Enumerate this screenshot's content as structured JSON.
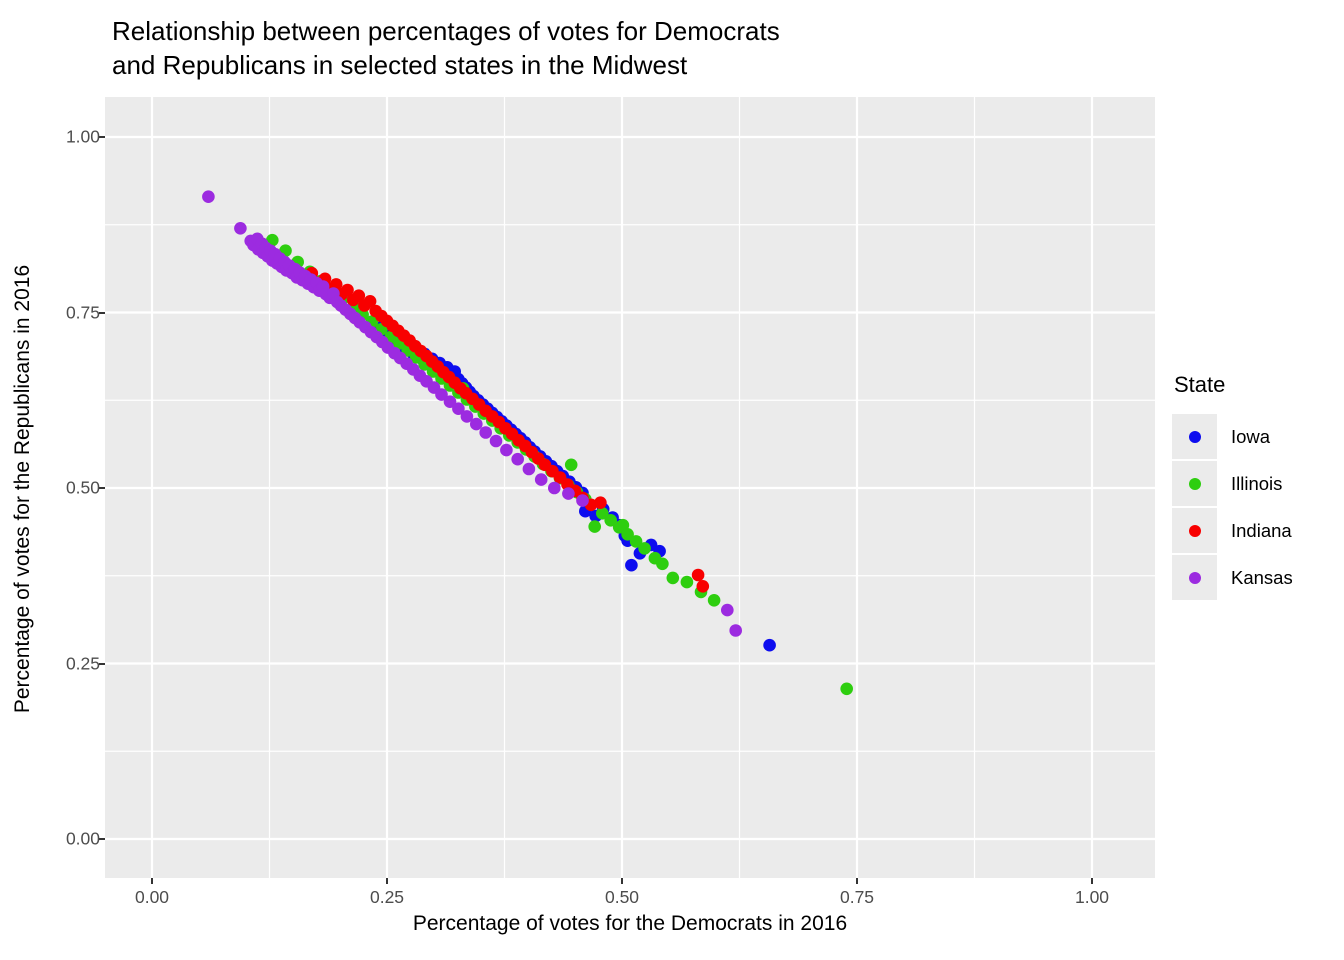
{
  "header": {
    "title": "Relationship between percentages of votes for Democrats and Republicans in selected states in the Midwest",
    "title_wrapped": "Relationship between percentages of votes for Democrats\nand Republicans in selected states in the Midwest"
  },
  "axes": {
    "x_label": "Percentage of votes for the Democrats in 2016",
    "y_label": "Percentage of votes for the Republicans in 2016",
    "x_tick_labels": [
      "0.00",
      "0.25",
      "0.50",
      "0.75",
      "1.00"
    ],
    "y_tick_labels": [
      "0.00",
      "0.25",
      "0.50",
      "0.75",
      "1.00"
    ]
  },
  "legend": {
    "title": "State",
    "entries": [
      {
        "label": "Iowa",
        "color": "#0D0DEF"
      },
      {
        "label": "Illinois",
        "color": "#2ECE0F"
      },
      {
        "label": "Indiana",
        "color": "#F80000"
      },
      {
        "label": "Kansas",
        "color": "#9C2BE0"
      }
    ]
  },
  "colors": {
    "panel_bg": "#EBEBEB",
    "grid": "#FFFFFF",
    "tick_text": "#4D4D4D",
    "tick_mark": "#333333",
    "title_text": "#000000"
  },
  "chart_data": {
    "type": "scatter",
    "title": "Relationship between percentages of votes for Democrats and Republicans in selected states in the Midwest",
    "xlabel": "Percentage of votes for the Democrats in 2016",
    "ylabel": "Percentage of votes for the Republicans in 2016",
    "xlim": [
      -0.05,
      1.067
    ],
    "ylim": [
      -0.056,
      1.057
    ],
    "x_tick_values": [
      0,
      0.25,
      0.5,
      0.75,
      1.0
    ],
    "y_tick_values": [
      0,
      0.25,
      0.5,
      0.75,
      1.0
    ],
    "grid": true,
    "legend_position": "right",
    "legend_title": "State",
    "point_radius_px": 6.3,
    "series": [
      {
        "name": "Iowa",
        "color": "#0D0DEF",
        "points": [
          [
            0.242,
            0.728
          ],
          [
            0.248,
            0.72
          ],
          [
            0.253,
            0.714
          ],
          [
            0.258,
            0.708
          ],
          [
            0.262,
            0.702
          ],
          [
            0.266,
            0.709
          ],
          [
            0.27,
            0.697
          ],
          [
            0.274,
            0.703
          ],
          [
            0.278,
            0.691
          ],
          [
            0.282,
            0.697
          ],
          [
            0.286,
            0.685
          ],
          [
            0.29,
            0.691
          ],
          [
            0.294,
            0.679
          ],
          [
            0.298,
            0.684
          ],
          [
            0.302,
            0.673
          ],
          [
            0.306,
            0.678
          ],
          [
            0.31,
            0.667
          ],
          [
            0.314,
            0.672
          ],
          [
            0.318,
            0.661
          ],
          [
            0.322,
            0.666
          ],
          [
            0.326,
            0.655
          ],
          [
            0.33,
            0.649
          ],
          [
            0.334,
            0.643
          ],
          [
            0.338,
            0.637
          ],
          [
            0.342,
            0.631
          ],
          [
            0.347,
            0.625
          ],
          [
            0.352,
            0.619
          ],
          [
            0.357,
            0.613
          ],
          [
            0.362,
            0.607
          ],
          [
            0.367,
            0.601
          ],
          [
            0.372,
            0.595
          ],
          [
            0.377,
            0.589
          ],
          [
            0.382,
            0.583
          ],
          [
            0.387,
            0.577
          ],
          [
            0.392,
            0.571
          ],
          [
            0.397,
            0.565
          ],
          [
            0.402,
            0.558
          ],
          [
            0.407,
            0.552
          ],
          [
            0.413,
            0.545
          ],
          [
            0.419,
            0.538
          ],
          [
            0.425,
            0.531
          ],
          [
            0.431,
            0.524
          ],
          [
            0.437,
            0.517
          ],
          [
            0.444,
            0.509
          ],
          [
            0.451,
            0.501
          ],
          [
            0.458,
            0.493
          ],
          [
            0.462,
            0.479
          ],
          [
            0.461,
            0.467
          ],
          [
            0.472,
            0.46
          ],
          [
            0.48,
            0.47
          ],
          [
            0.49,
            0.458
          ],
          [
            0.497,
            0.447
          ],
          [
            0.503,
            0.432
          ],
          [
            0.506,
            0.425
          ],
          [
            0.519,
            0.407
          ],
          [
            0.51,
            0.39
          ],
          [
            0.531,
            0.419
          ],
          [
            0.54,
            0.41
          ],
          [
            0.657,
            0.276
          ]
        ]
      },
      {
        "name": "Illinois",
        "color": "#2ECE0F",
        "points": [
          [
            0.128,
            0.853
          ],
          [
            0.142,
            0.838
          ],
          [
            0.155,
            0.822
          ],
          [
            0.168,
            0.808
          ],
          [
            0.18,
            0.795
          ],
          [
            0.192,
            0.782
          ],
          [
            0.203,
            0.77
          ],
          [
            0.214,
            0.758
          ],
          [
            0.224,
            0.747
          ],
          [
            0.234,
            0.737
          ],
          [
            0.244,
            0.726
          ],
          [
            0.254,
            0.715
          ],
          [
            0.263,
            0.706
          ],
          [
            0.272,
            0.696
          ],
          [
            0.281,
            0.686
          ],
          [
            0.29,
            0.676
          ],
          [
            0.299,
            0.666
          ],
          [
            0.308,
            0.656
          ],
          [
            0.317,
            0.646
          ],
          [
            0.331,
            0.642
          ],
          [
            0.326,
            0.636
          ],
          [
            0.335,
            0.626
          ],
          [
            0.344,
            0.616
          ],
          [
            0.353,
            0.606
          ],
          [
            0.362,
            0.596
          ],
          [
            0.371,
            0.585
          ],
          [
            0.38,
            0.575
          ],
          [
            0.389,
            0.565
          ],
          [
            0.398,
            0.555
          ],
          [
            0.407,
            0.545
          ],
          [
            0.416,
            0.534
          ],
          [
            0.425,
            0.524
          ],
          [
            0.434,
            0.514
          ],
          [
            0.446,
            0.533
          ],
          [
            0.443,
            0.504
          ],
          [
            0.452,
            0.494
          ],
          [
            0.461,
            0.484
          ],
          [
            0.471,
            0.445
          ],
          [
            0.479,
            0.464
          ],
          [
            0.488,
            0.454
          ],
          [
            0.497,
            0.444
          ],
          [
            0.501,
            0.447
          ],
          [
            0.506,
            0.434
          ],
          [
            0.515,
            0.424
          ],
          [
            0.524,
            0.414
          ],
          [
            0.535,
            0.4
          ],
          [
            0.543,
            0.392
          ],
          [
            0.554,
            0.372
          ],
          [
            0.569,
            0.366
          ],
          [
            0.584,
            0.352
          ],
          [
            0.598,
            0.34
          ],
          [
            0.739,
            0.214
          ]
        ]
      },
      {
        "name": "Indiana",
        "color": "#F80000",
        "points": [
          [
            0.155,
            0.808
          ],
          [
            0.163,
            0.8
          ],
          [
            0.17,
            0.806
          ],
          [
            0.177,
            0.792
          ],
          [
            0.184,
            0.798
          ],
          [
            0.19,
            0.784
          ],
          [
            0.196,
            0.79
          ],
          [
            0.202,
            0.776
          ],
          [
            0.208,
            0.782
          ],
          [
            0.214,
            0.768
          ],
          [
            0.22,
            0.774
          ],
          [
            0.226,
            0.76
          ],
          [
            0.232,
            0.766
          ],
          [
            0.238,
            0.752
          ],
          [
            0.244,
            0.745
          ],
          [
            0.25,
            0.738
          ],
          [
            0.256,
            0.731
          ],
          [
            0.262,
            0.724
          ],
          [
            0.268,
            0.717
          ],
          [
            0.274,
            0.71
          ],
          [
            0.28,
            0.702
          ],
          [
            0.286,
            0.695
          ],
          [
            0.292,
            0.688
          ],
          [
            0.298,
            0.68
          ],
          [
            0.304,
            0.673
          ],
          [
            0.31,
            0.665
          ],
          [
            0.316,
            0.658
          ],
          [
            0.322,
            0.65
          ],
          [
            0.328,
            0.642
          ],
          [
            0.334,
            0.635
          ],
          [
            0.341,
            0.627
          ],
          [
            0.348,
            0.619
          ],
          [
            0.355,
            0.61
          ],
          [
            0.362,
            0.602
          ],
          [
            0.369,
            0.594
          ],
          [
            0.376,
            0.585
          ],
          [
            0.383,
            0.577
          ],
          [
            0.39,
            0.568
          ],
          [
            0.397,
            0.56
          ],
          [
            0.404,
            0.551
          ],
          [
            0.411,
            0.542
          ],
          [
            0.418,
            0.533
          ],
          [
            0.426,
            0.524
          ],
          [
            0.434,
            0.515
          ],
          [
            0.442,
            0.505
          ],
          [
            0.45,
            0.496
          ],
          [
            0.458,
            0.486
          ],
          [
            0.467,
            0.476
          ],
          [
            0.477,
            0.479
          ],
          [
            0.581,
            0.376
          ],
          [
            0.586,
            0.36
          ]
        ]
      },
      {
        "name": "Kansas",
        "color": "#9C2BE0",
        "points": [
          [
            0.06,
            0.915
          ],
          [
            0.094,
            0.87
          ],
          [
            0.105,
            0.852
          ],
          [
            0.108,
            0.846
          ],
          [
            0.112,
            0.855
          ],
          [
            0.113,
            0.84
          ],
          [
            0.117,
            0.848
          ],
          [
            0.118,
            0.835
          ],
          [
            0.121,
            0.842
          ],
          [
            0.123,
            0.83
          ],
          [
            0.126,
            0.838
          ],
          [
            0.128,
            0.824
          ],
          [
            0.131,
            0.833
          ],
          [
            0.133,
            0.82
          ],
          [
            0.136,
            0.827
          ],
          [
            0.138,
            0.815
          ],
          [
            0.141,
            0.822
          ],
          [
            0.143,
            0.81
          ],
          [
            0.146,
            0.817
          ],
          [
            0.149,
            0.806
          ],
          [
            0.152,
            0.812
          ],
          [
            0.154,
            0.8
          ],
          [
            0.157,
            0.807
          ],
          [
            0.16,
            0.796
          ],
          [
            0.163,
            0.802
          ],
          [
            0.166,
            0.791
          ],
          [
            0.169,
            0.797
          ],
          [
            0.172,
            0.786
          ],
          [
            0.175,
            0.792
          ],
          [
            0.178,
            0.781
          ],
          [
            0.182,
            0.787
          ],
          [
            0.185,
            0.776
          ],
          [
            0.189,
            0.771
          ],
          [
            0.193,
            0.777
          ],
          [
            0.197,
            0.765
          ],
          [
            0.201,
            0.76
          ],
          [
            0.206,
            0.754
          ],
          [
            0.211,
            0.748
          ],
          [
            0.216,
            0.742
          ],
          [
            0.221,
            0.736
          ],
          [
            0.227,
            0.729
          ],
          [
            0.233,
            0.722
          ],
          [
            0.239,
            0.715
          ],
          [
            0.245,
            0.708
          ],
          [
            0.251,
            0.7
          ],
          [
            0.258,
            0.692
          ],
          [
            0.264,
            0.685
          ],
          [
            0.271,
            0.677
          ],
          [
            0.278,
            0.669
          ],
          [
            0.285,
            0.66
          ],
          [
            0.292,
            0.652
          ],
          [
            0.3,
            0.643
          ],
          [
            0.308,
            0.633
          ],
          [
            0.317,
            0.623
          ],
          [
            0.326,
            0.613
          ],
          [
            0.335,
            0.602
          ],
          [
            0.345,
            0.591
          ],
          [
            0.355,
            0.579
          ],
          [
            0.366,
            0.567
          ],
          [
            0.377,
            0.554
          ],
          [
            0.389,
            0.541
          ],
          [
            0.401,
            0.527
          ],
          [
            0.414,
            0.512
          ],
          [
            0.428,
            0.5
          ],
          [
            0.443,
            0.492
          ],
          [
            0.458,
            0.482
          ],
          [
            0.612,
            0.326
          ],
          [
            0.621,
            0.297
          ]
        ]
      }
    ]
  }
}
